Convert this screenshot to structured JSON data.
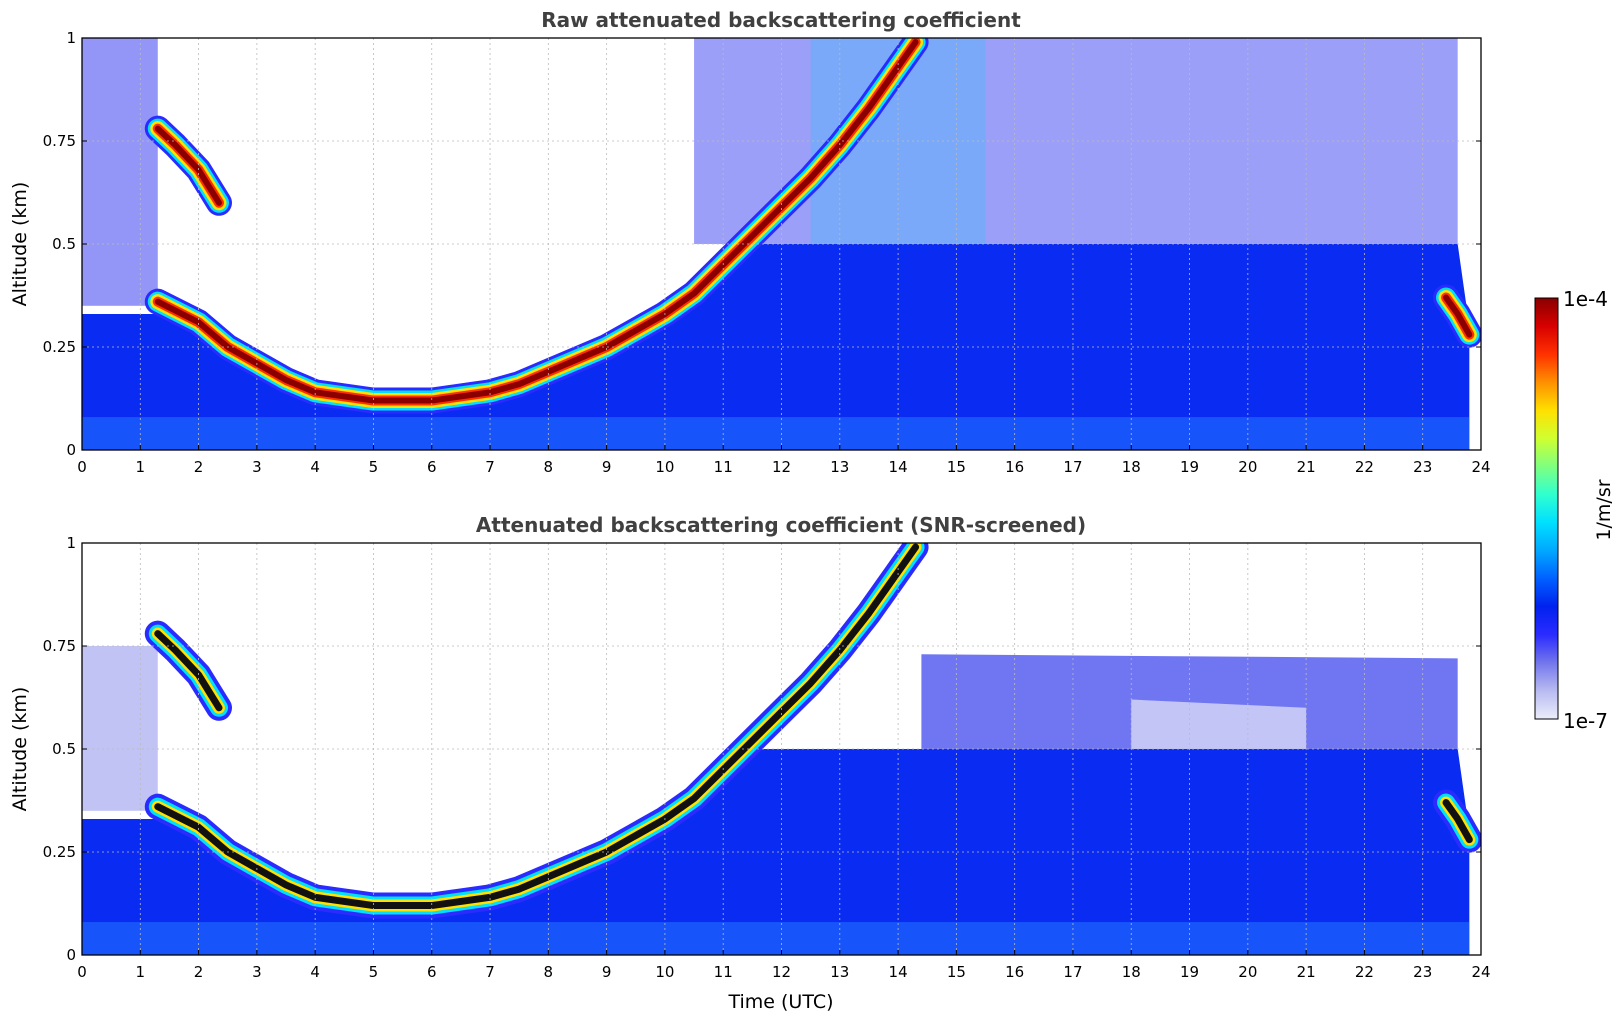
{
  "chart_data": [
    {
      "type": "heatmap",
      "title": "Raw attenuated backscattering coefficient",
      "xlabel": "",
      "ylabel": "Altitude (km)",
      "xlim": [
        0,
        24
      ],
      "ylim": [
        0,
        1
      ],
      "xticks": [
        "0",
        "1",
        "2",
        "3",
        "4",
        "5",
        "6",
        "7",
        "8",
        "9",
        "10",
        "11",
        "12",
        "13",
        "14",
        "15",
        "16",
        "17",
        "18",
        "19",
        "20",
        "21",
        "22",
        "23",
        "24"
      ],
      "yticks": [
        "0",
        "0.25",
        "0.5",
        "0.75",
        "1"
      ],
      "grid": true,
      "layers": [
        {
          "time": [
            1.3,
            1.6,
            2.0,
            2.35
          ],
          "altitude_km": [
            0.78,
            0.74,
            0.68,
            0.6
          ]
        },
        {
          "time": [
            1.3,
            2.0,
            2.5,
            3.0,
            3.5,
            4.0,
            4.5,
            5.0,
            5.5,
            6.0,
            6.5,
            7.0,
            7.5,
            8.0,
            8.5,
            9.0,
            9.5,
            10.0,
            10.5,
            11.0,
            11.5,
            12.0,
            12.5,
            13.0,
            13.5,
            14.0,
            14.3
          ],
          "altitude_km": [
            0.36,
            0.31,
            0.25,
            0.21,
            0.17,
            0.14,
            0.13,
            0.12,
            0.12,
            0.12,
            0.13,
            0.14,
            0.16,
            0.19,
            0.22,
            0.25,
            0.29,
            0.33,
            0.38,
            0.45,
            0.52,
            0.59,
            0.66,
            0.74,
            0.83,
            0.93,
            0.99
          ]
        },
        {
          "time": [
            23.4,
            23.6,
            23.8
          ],
          "altitude_km": [
            0.37,
            0.33,
            0.28
          ]
        }
      ]
    },
    {
      "type": "heatmap",
      "title": "Attenuated backscattering coefficient (SNR-screened)",
      "xlabel": "Time (UTC)",
      "ylabel": "Altitude (km)",
      "xlim": [
        0,
        24
      ],
      "ylim": [
        0,
        1
      ],
      "xticks": [
        "0",
        "1",
        "2",
        "3",
        "4",
        "5",
        "6",
        "7",
        "8",
        "9",
        "10",
        "11",
        "12",
        "13",
        "14",
        "15",
        "16",
        "17",
        "18",
        "19",
        "20",
        "21",
        "22",
        "23",
        "24"
      ],
      "yticks": [
        "0",
        "0.25",
        "0.5",
        "0.75",
        "1"
      ],
      "grid": true,
      "layers": [
        {
          "time": [
            1.3,
            1.6,
            2.0,
            2.35
          ],
          "altitude_km": [
            0.78,
            0.74,
            0.68,
            0.6
          ]
        },
        {
          "time": [
            1.3,
            2.0,
            2.5,
            3.0,
            3.5,
            4.0,
            4.5,
            5.0,
            5.5,
            6.0,
            6.5,
            7.0,
            7.5,
            8.0,
            8.5,
            9.0,
            9.5,
            10.0,
            10.5,
            11.0,
            11.5,
            12.0,
            12.5,
            13.0,
            13.5,
            14.0,
            14.3
          ],
          "altitude_km": [
            0.36,
            0.31,
            0.25,
            0.21,
            0.17,
            0.14,
            0.13,
            0.12,
            0.12,
            0.12,
            0.13,
            0.14,
            0.16,
            0.19,
            0.22,
            0.25,
            0.29,
            0.33,
            0.38,
            0.45,
            0.52,
            0.59,
            0.66,
            0.74,
            0.83,
            0.93,
            0.99
          ]
        },
        {
          "time": [
            23.4,
            23.6,
            23.8
          ],
          "altitude_km": [
            0.37,
            0.33,
            0.28
          ]
        }
      ]
    }
  ],
  "colorbar": {
    "label": "1/m/sr",
    "max_label": "1e-4",
    "min_label": "1e-7",
    "colors": [
      "#ecedfb",
      "#b8bbf0",
      "#7477ec",
      "#2b2bff",
      "#0022ee",
      "#0060ff",
      "#00a8ff",
      "#00e0ff",
      "#30ffd0",
      "#7fff80",
      "#d0ff30",
      "#ffe000",
      "#ff9000",
      "#ff3000",
      "#d80000",
      "#8a0000"
    ]
  }
}
